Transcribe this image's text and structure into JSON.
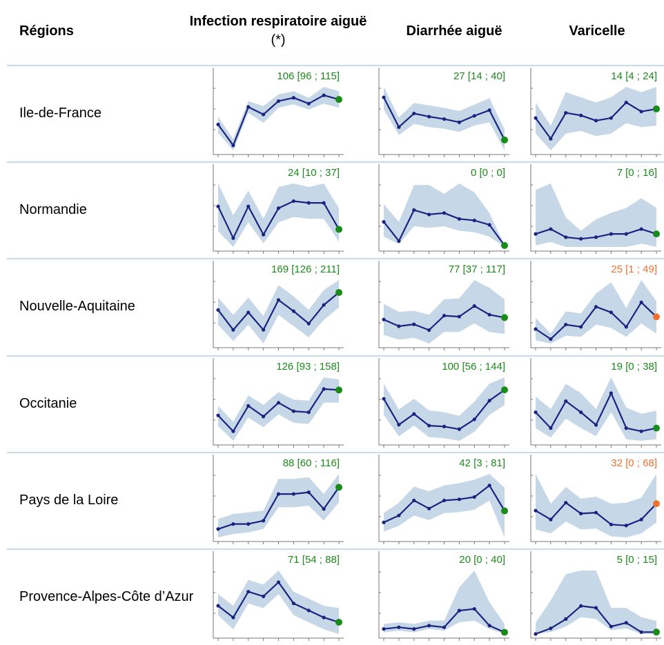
{
  "headers": {
    "region": "Régions",
    "col0_bold": "Infection respiratoire aiguë",
    "col0_normal": "(*)",
    "col1": "Diarrhée aiguë",
    "col2": "Varicelle"
  },
  "colors": {
    "line": "#1a237e",
    "band": "#c6d7e8",
    "ok": "#1a8a1a",
    "alert": "#f07030",
    "separator": "#c9d9e8",
    "axis": "#777777"
  },
  "chart_data": {
    "type": "line",
    "columns": [
      "Infection respiratoire aiguë",
      "Diarrhée aiguë",
      "Varicelle"
    ],
    "rows": [
      {
        "region": "Ile-de-France",
        "panels": [
          {
            "label": "106 [96 ; 115]",
            "status": "ok",
            "values": [
              86,
              61,
              107,
              98,
              114,
              118,
              111,
              121,
              116
            ],
            "lower": [
              76,
              55,
              100,
              88,
              106,
              110,
              104,
              111,
              106
            ],
            "upper": [
              95,
              69,
              114,
              108,
              122,
              126,
              118,
              131,
              126
            ]
          },
          {
            "label": "27 [14 ; 40]",
            "status": "ok",
            "values": [
              75,
              38,
              55,
              51,
              48,
              44,
              52,
              59,
              22
            ],
            "lower": [
              60,
              28,
              42,
              38,
              36,
              32,
              40,
              44,
              9
            ],
            "upper": [
              88,
              50,
              68,
              65,
              62,
              58,
              66,
              74,
              35
            ]
          },
          {
            "label": "14 [4 ; 24]",
            "status": "ok",
            "values": [
              52,
              36,
              56,
              54,
              50,
              52,
              64,
              57,
              59
            ],
            "lower": [
              40,
              27,
              40,
              42,
              38,
              40,
              48,
              45,
              46
            ],
            "upper": [
              64,
              46,
              72,
              68,
              64,
              68,
              76,
              72,
              76
            ]
          }
        ]
      },
      {
        "region": "Normandie",
        "panels": [
          {
            "label": "24 [10 ; 37]",
            "status": "ok",
            "values": [
              29,
              11,
              29,
              13,
              28,
              32,
              31,
              31,
              16
            ],
            "lower": [
              15,
              6,
              20,
              8,
              20,
              23,
              22,
              22,
              9
            ],
            "upper": [
              42,
              24,
              38,
              22,
              40,
              42,
              40,
              42,
              28
            ]
          },
          {
            "label": "0 [0 ; 0]",
            "status": "ok",
            "values": [
              17,
              4,
              25,
              22,
              23,
              19,
              18,
              15,
              1
            ],
            "lower": [
              7,
              2,
              14,
              13,
              14,
              11,
              10,
              7,
              0
            ],
            "upper": [
              29,
              17,
              42,
              42,
              36,
              43,
              37,
              23,
              1
            ]
          },
          {
            "label": "7 [0 ; 16]",
            "status": "ok",
            "values": [
              11,
              14,
              9,
              8,
              9,
              11,
              11,
              14,
              11
            ],
            "lower": [
              4,
              6,
              3,
              3,
              3,
              3,
              3,
              5,
              3
            ],
            "upper": [
              38,
              42,
              21,
              13,
              20,
              24,
              27,
              33,
              27
            ]
          }
        ]
      },
      {
        "region": "Nouvelle-Aquitaine",
        "panels": [
          {
            "label": "169 [126 ; 211]",
            "status": "ok",
            "values": [
              146,
              130,
              144,
              130,
              154,
              145,
              135,
              150,
              160
            ],
            "lower": [
              134,
              121,
              134,
              119,
              142,
              133,
              124,
              138,
              148
            ],
            "upper": [
              156,
              142,
              156,
              141,
              166,
              157,
              146,
              162,
              170
            ]
          },
          {
            "label": "77 [37 ; 117]",
            "status": "ok",
            "values": [
              54,
              47,
              49,
              43,
              58,
              57,
              68,
              59,
              56
            ],
            "lower": [
              38,
              33,
              35,
              29,
              41,
              41,
              50,
              41,
              39
            ],
            "upper": [
              70,
              62,
              63,
              59,
              75,
              76,
              95,
              87,
              75
            ]
          },
          {
            "label": "25 [1 ; 49]",
            "status": "alert",
            "values": [
              14,
              5,
              18,
              16,
              34,
              29,
              16,
              38,
              25
            ],
            "lower": [
              4,
              1,
              8,
              7,
              18,
              15,
              7,
              19,
              10
            ],
            "upper": [
              24,
              10,
              30,
              28,
              46,
              56,
              33,
              58,
              39
            ]
          }
        ]
      },
      {
        "region": "Occitanie",
        "panels": [
          {
            "label": "126 [93 ; 158]",
            "status": "ok",
            "values": [
              112,
              97,
              121,
              111,
              124,
              116,
              115,
              137,
              136
            ],
            "lower": [
              102,
              88,
              110,
              101,
              113,
              105,
              104,
              124,
              124
            ],
            "upper": [
              121,
              106,
              131,
              122,
              134,
              127,
              126,
              148,
              146
            ]
          },
          {
            "label": "100 [56 ; 144]",
            "status": "ok",
            "values": [
              89,
              60,
              72,
              59,
              58,
              55,
              66,
              87,
              99
            ],
            "lower": [
              71,
              47,
              59,
              46,
              45,
              42,
              52,
              71,
              82
            ],
            "upper": [
              106,
              77,
              89,
              76,
              74,
              70,
              86,
              106,
              113
            ]
          },
          {
            "label": "19 [0 ; 38]",
            "status": "ok",
            "values": [
              20,
              10,
              27,
              20,
              12,
              32,
              10,
              8,
              10
            ],
            "lower": [
              10,
              4,
              16,
              10,
              5,
              20,
              3,
              2,
              3
            ],
            "upper": [
              30,
              22,
              38,
              32,
              22,
              42,
              23,
              19,
              21
            ]
          }
        ]
      },
      {
        "region": "Pays de la Loire",
        "panels": [
          {
            "label": "88 [60 ; 116]",
            "status": "ok",
            "values": [
              54,
              57,
              57,
              59,
              75,
              75,
              76,
              66,
              79
            ],
            "lower": [
              49,
              51,
              52,
              54,
              67,
              67,
              68,
              59,
              70
            ],
            "upper": [
              60,
              63,
              64,
              65,
              84,
              84,
              85,
              75,
              87
            ]
          },
          {
            "label": "42 [3 ; 81]",
            "status": "ok",
            "values": [
              23,
              29,
              42,
              35,
              42,
              43,
              45,
              55,
              33
            ],
            "lower": [
              15,
              20,
              29,
              25,
              31,
              32,
              34,
              42,
              10
            ],
            "upper": [
              31,
              40,
              54,
              50,
              55,
              57,
              60,
              65,
              53
            ]
          },
          {
            "label": "32 [0 ; 68]",
            "status": "alert",
            "values": [
              43,
              34,
              51,
              40,
              41,
              29,
              28,
              34,
              50
            ],
            "lower": [
              24,
              20,
              32,
              24,
              25,
              17,
              16,
              20,
              31
            ],
            "upper": [
              80,
              50,
              67,
              55,
              57,
              50,
              51,
              56,
              80
            ]
          }
        ]
      },
      {
        "region": "Provence-Alpes-Côte d’Azur",
        "panels": [
          {
            "label": "71 [54 ; 88]",
            "status": "ok",
            "values": [
              67,
              62,
              73,
              71,
              77,
              68,
              65,
              62,
              60
            ],
            "lower": [
              63,
              57,
              68,
              66,
              72,
              63,
              60,
              57,
              55
            ],
            "upper": [
              72,
              67,
              78,
              76,
              82,
              73,
              70,
              67,
              66
            ]
          },
          {
            "label": "20 [0 ; 40]",
            "status": "ok",
            "values": [
              3,
              4,
              3,
              5,
              4,
              14,
              15,
              5,
              1
            ],
            "lower": [
              1,
              2,
              1,
              3,
              2,
              7,
              8,
              3,
              0
            ],
            "upper": [
              6,
              7,
              6,
              8,
              8,
              28,
              38,
              19,
              6
            ]
          },
          {
            "label": "5 [0 ; 15]",
            "status": "ok",
            "values": [
              0,
              3,
              8,
              15,
              14,
              4,
              6,
              1,
              1
            ],
            "lower": [
              0,
              1,
              4,
              9,
              8,
              2,
              3,
              0,
              0
            ],
            "upper": [
              6,
              18,
              32,
              34,
              34,
              14,
              14,
              9,
              7
            ]
          }
        ]
      }
    ]
  }
}
